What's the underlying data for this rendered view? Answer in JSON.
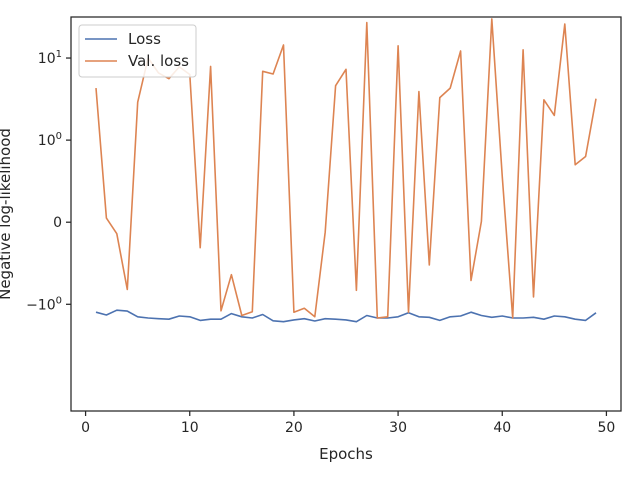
{
  "chart_data": {
    "type": "line",
    "xlabel": "Epochs",
    "ylabel": "Negative log-likelihood",
    "yscale": "symlog",
    "xlim": [
      -1.4,
      51.4
    ],
    "xticks": [
      0,
      10,
      20,
      30,
      40,
      50
    ],
    "yticks": [
      {
        "value": 10,
        "label": "10",
        "sup": "1"
      },
      {
        "value": 1,
        "label": "10",
        "sup": "0"
      },
      {
        "value": 0,
        "label": "0",
        "sup": ""
      },
      {
        "value": -1,
        "label": "−10",
        "sup": "0"
      }
    ],
    "legend": {
      "placement": "upper-left"
    },
    "grid": false,
    "series": [
      {
        "name": "Loss",
        "color": "#4c72b0",
        "x": [
          1,
          2,
          3,
          4,
          5,
          6,
          7,
          8,
          9,
          10,
          11,
          12,
          13,
          14,
          15,
          16,
          17,
          18,
          19,
          20,
          21,
          22,
          23,
          24,
          25,
          26,
          27,
          28,
          29,
          30,
          31,
          32,
          33,
          34,
          35,
          36,
          37,
          38,
          39,
          40,
          41,
          42,
          43,
          44,
          45,
          46,
          47,
          48,
          49
        ],
        "values": [
          -1.25,
          -1.35,
          -1.18,
          -1.21,
          -1.42,
          -1.47,
          -1.5,
          -1.52,
          -1.39,
          -1.42,
          -1.57,
          -1.52,
          -1.52,
          -1.3,
          -1.42,
          -1.47,
          -1.33,
          -1.59,
          -1.63,
          -1.55,
          -1.5,
          -1.6,
          -1.5,
          -1.52,
          -1.55,
          -1.63,
          -1.37,
          -1.47,
          -1.47,
          -1.42,
          -1.27,
          -1.42,
          -1.44,
          -1.57,
          -1.42,
          -1.39,
          -1.25,
          -1.37,
          -1.44,
          -1.39,
          -1.47,
          -1.47,
          -1.44,
          -1.52,
          -1.39,
          -1.42,
          -1.52,
          -1.57,
          -1.27
        ]
      },
      {
        "name": "Val. loss",
        "color": "#dd8452",
        "x": [
          1,
          2,
          3,
          4,
          5,
          6,
          7,
          8,
          9,
          10,
          11,
          12,
          13,
          14,
          15,
          16,
          17,
          18,
          19,
          20,
          21,
          22,
          23,
          24,
          25,
          26,
          27,
          28,
          29,
          30,
          31,
          32,
          33,
          34,
          35,
          36,
          37,
          38,
          39,
          40,
          41,
          42,
          43,
          44,
          45,
          46,
          47,
          48,
          49
        ],
        "values": [
          4.3,
          0.05,
          -0.14,
          -0.82,
          2.9,
          10,
          6.6,
          5.6,
          7.8,
          6.3,
          -0.31,
          7.9,
          -1.2,
          -0.64,
          -1.37,
          -1.23,
          6.9,
          6.4,
          14.4,
          -1.25,
          -1.12,
          -1.42,
          -0.12,
          4.6,
          7.3,
          -0.83,
          27,
          -1.47,
          -1.42,
          14.1,
          -1.25,
          3.9,
          -0.52,
          3.3,
          4.3,
          12.2,
          -0.71,
          0.01,
          30,
          0.55,
          -1.47,
          12.6,
          -0.91,
          3.1,
          2.0,
          26,
          0.7,
          0.8,
          3.2
        ]
      }
    ]
  }
}
